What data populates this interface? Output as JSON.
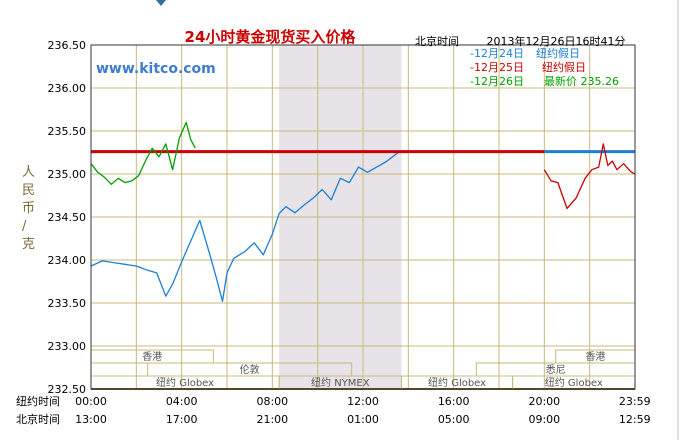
{
  "header": {
    "title": "24小时黄金现货买入价格",
    "tz_label": "北京时间",
    "timestamp": "2013年12月26日16时41分",
    "watermark": "www.kitco.com"
  },
  "legend": [
    {
      "date": "-12月24日",
      "status": "纽约假日",
      "color": "#1a7fd6"
    },
    {
      "date": "-12月25日",
      "status": "纽约假日",
      "color": "#cc0000"
    },
    {
      "date": "-12月26日",
      "status": "最新价 235.26",
      "color": "#00a000"
    }
  ],
  "axis": {
    "ylabel": "人民币/克",
    "row1_label": "纽约时间",
    "row2_label": "北京时间"
  },
  "sessions": [
    {
      "name": "香港"
    },
    {
      "name": "伦敦"
    },
    {
      "name": "纽约 Globex"
    },
    {
      "name": "纽约 NYMEX"
    },
    {
      "name": "纽约 Globex"
    },
    {
      "name": "香港"
    },
    {
      "name": "悉尼"
    },
    {
      "name": "纽约 Globex"
    }
  ],
  "chart_data": {
    "type": "line",
    "ylim": [
      232.5,
      236.5
    ],
    "yticks": [
      "236.50",
      "236.00",
      "235.50",
      "235.00",
      "234.50",
      "234.00",
      "233.50",
      "233.00",
      "232.50"
    ],
    "xlim": [
      0,
      24
    ],
    "xticks_ny": [
      "00:00",
      "04:00",
      "08:00",
      "12:00",
      "16:00",
      "20:00",
      "23:59"
    ],
    "xticks_bj": [
      "13:00",
      "17:00",
      "21:00",
      "01:00",
      "05:00",
      "09:00",
      "12:59"
    ],
    "reference_price": 235.26,
    "series": [
      {
        "name": "12月24日",
        "color": "#1a7fd6",
        "segments": [
          {
            "x": [
              0,
              0.5,
              1,
              1.5,
              2,
              2.5,
              2.9,
              3.3,
              3.6,
              4.0,
              4.4,
              4.8,
              5.2,
              5.5,
              5.8,
              6.0,
              6.3,
              6.8,
              7.2,
              7.6,
              8.0,
              8.3,
              8.6,
              9.0,
              9.4,
              9.8,
              10.2,
              10.6,
              11.0,
              11.4,
              11.8,
              12.2,
              12.6,
              13.0,
              13.3,
              13.6
            ],
            "y": [
              233.93,
              233.99,
              233.97,
              233.95,
              233.93,
              233.88,
              233.85,
              233.58,
              233.72,
              233.98,
              234.22,
              234.46,
              234.1,
              233.82,
              233.52,
              233.85,
              234.02,
              234.1,
              234.2,
              234.06,
              234.3,
              234.54,
              234.62,
              234.55,
              234.64,
              234.72,
              234.82,
              234.7,
              234.95,
              234.9,
              235.08,
              235.02,
              235.08,
              235.14,
              235.2,
              235.26
            ]
          },
          {
            "x": [
              20,
              20.4,
              20.8,
              21.2,
              21.5,
              21.8,
              22.1,
              22.4,
              22.7,
              23.0,
              23.3,
              23.6,
              23.99
            ],
            "y": [
              235.26,
              235.26,
              235.26,
              235.26,
              235.26,
              235.26,
              235.26,
              235.26,
              235.26,
              235.26,
              235.26,
              235.26,
              235.26
            ]
          }
        ]
      },
      {
        "name": "12月25日",
        "color": "#cc0000",
        "segments": [
          {
            "x": [
              0,
              2,
              4,
              6,
              8,
              10,
              12,
              14,
              16,
              17.5,
              20
            ],
            "y": [
              235.26,
              235.26,
              235.26,
              235.26,
              235.26,
              235.26,
              235.26,
              235.26,
              235.26,
              235.26,
              235.26
            ]
          },
          {
            "x": [
              20,
              20.3,
              20.6,
              21.0,
              21.4,
              21.8,
              22.1,
              22.4,
              22.6,
              22.8,
              23.0,
              23.2,
              23.5,
              23.8,
              23.99
            ],
            "y": [
              235.05,
              234.92,
              234.9,
              234.6,
              234.72,
              234.95,
              235.05,
              235.08,
              235.35,
              235.1,
              235.15,
              235.05,
              235.12,
              235.03,
              235.0
            ]
          }
        ]
      },
      {
        "name": "12月26日",
        "color": "#00a000",
        "segments": [
          {
            "x": [
              0,
              0.3,
              0.6,
              0.9,
              1.2,
              1.5,
              1.8,
              2.1,
              2.4,
              2.7,
              3.0,
              3.3,
              3.6,
              3.9,
              4.2,
              4.4,
              4.6
            ],
            "y": [
              235.12,
              235.02,
              234.96,
              234.88,
              234.95,
              234.9,
              234.92,
              234.98,
              235.15,
              235.3,
              235.2,
              235.35,
              235.05,
              235.42,
              235.6,
              235.4,
              235.3
            ]
          }
        ]
      }
    ]
  }
}
